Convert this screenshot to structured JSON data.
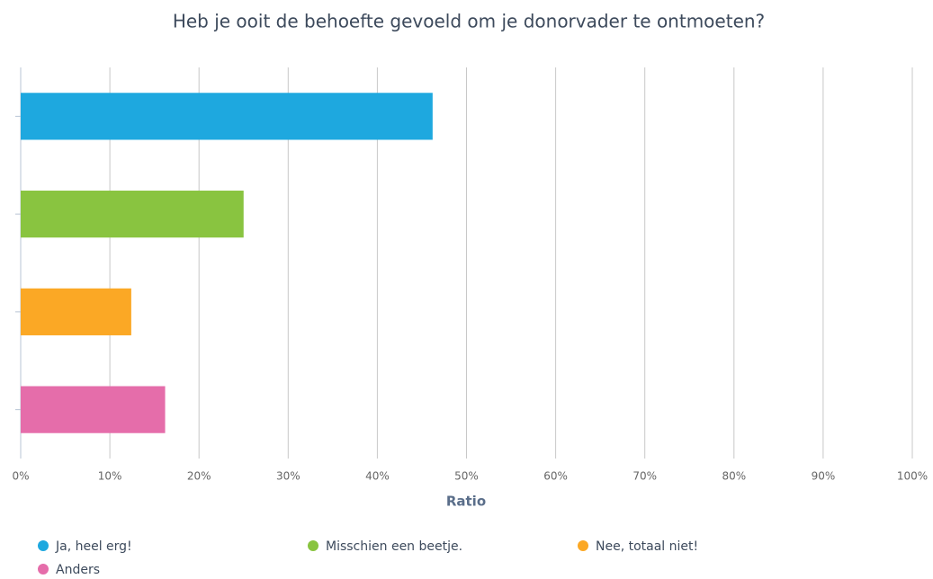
{
  "chart_data": {
    "type": "barh",
    "title": "Heb je ooit de behoefte gevoeld om je donorvader te ontmoeten?",
    "xlabel": "Ratio",
    "categories": [
      "Ja, heel erg!",
      "Misschien een beetje.",
      "Nee, totaal niet!",
      "Anders"
    ],
    "values": [
      46.2,
      25.0,
      12.4,
      16.2
    ],
    "colors": [
      "#1ea8df",
      "#89c440",
      "#fba825",
      "#e56daa"
    ],
    "xlim": [
      0,
      100
    ],
    "xticks": [
      {
        "value": 0,
        "label": "0%"
      },
      {
        "value": 10,
        "label": "10%"
      },
      {
        "value": 20,
        "label": "20%"
      },
      {
        "value": 30,
        "label": "30%"
      },
      {
        "value": 40,
        "label": "40%"
      },
      {
        "value": 50,
        "label": "50%"
      },
      {
        "value": 60,
        "label": "60%"
      },
      {
        "value": 70,
        "label": "70%"
      },
      {
        "value": 80,
        "label": "80%"
      },
      {
        "value": 90,
        "label": "90%"
      },
      {
        "value": 100,
        "label": "100%"
      }
    ],
    "grid": true,
    "legend": "bottom"
  }
}
